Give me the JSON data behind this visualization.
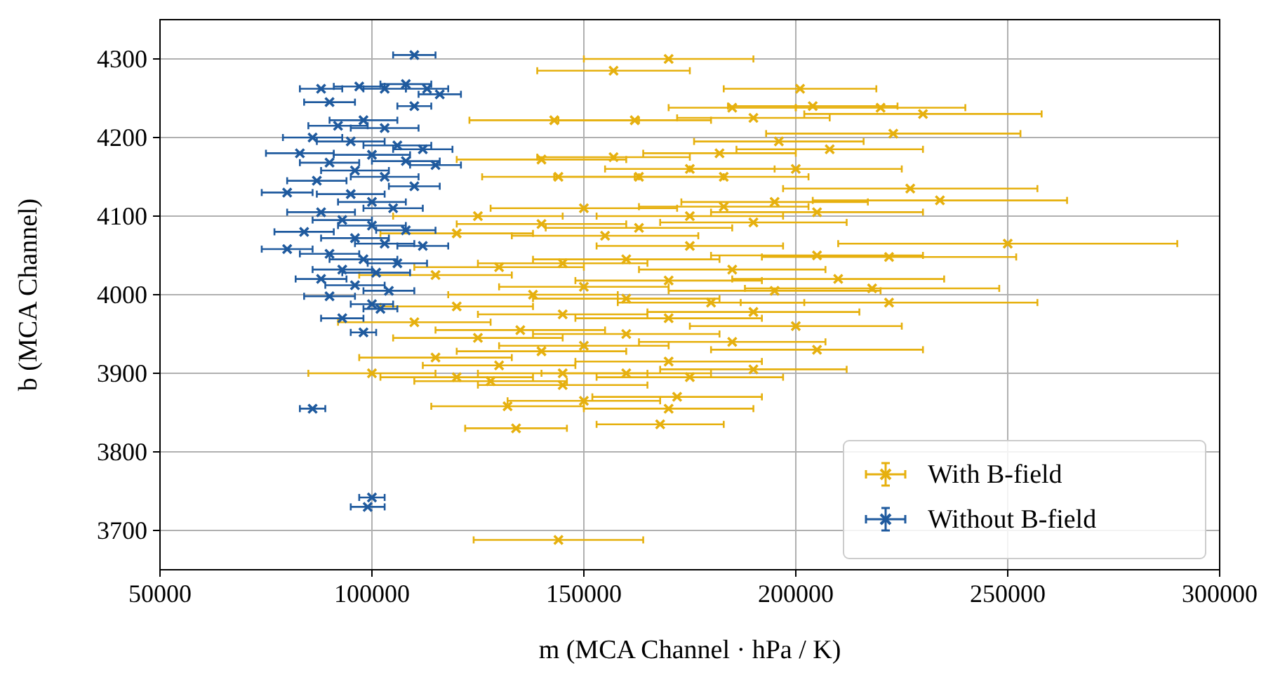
{
  "chart_data": {
    "type": "scatter",
    "xlabel": "m (MCA Channel · hPa / K)",
    "ylabel": "b (MCA Channel)",
    "xlim": [
      50000,
      300000
    ],
    "xticks": [
      50000,
      100000,
      150000,
      200000,
      250000,
      300000
    ],
    "ylim": [
      3650,
      4350
    ],
    "yticks": [
      3700,
      3800,
      3900,
      4000,
      4100,
      4200,
      4300
    ],
    "grid": true,
    "legend": "bottom right",
    "marker": "cross",
    "series": [
      {
        "name": "With B-field",
        "color": "#e6b00e",
        "x": [
          170000,
          157000,
          201000,
          204000,
          220000,
          230000,
          185000,
          190000,
          143000,
          162000,
          223000,
          196000,
          208000,
          182000,
          140000,
          157000,
          175000,
          200000,
          163000,
          144000,
          183000,
          227000,
          234000,
          195000,
          183000,
          150000,
          125000,
          175000,
          205000,
          190000,
          140000,
          163000,
          120000,
          155000,
          250000,
          175000,
          222000,
          205000,
          160000,
          145000,
          130000,
          185000,
          115000,
          210000,
          170000,
          150000,
          218000,
          195000,
          138000,
          160000,
          222000,
          180000,
          120000,
          190000,
          145000,
          170000,
          110000,
          200000,
          135000,
          160000,
          125000,
          185000,
          150000,
          205000,
          140000,
          115000,
          170000,
          130000,
          190000,
          100000,
          145000,
          160000,
          175000,
          120000,
          128000,
          145000,
          172000,
          150000,
          132000,
          170000,
          134000,
          168000,
          144000
        ],
        "values": [
          4300,
          4285,
          4262,
          4240,
          4238,
          4230,
          4238,
          4225,
          4222,
          4222,
          4205,
          4195,
          4185,
          4180,
          4172,
          4175,
          4160,
          4160,
          4150,
          4150,
          4150,
          4135,
          4120,
          4118,
          4112,
          4110,
          4100,
          4100,
          4105,
          4092,
          4090,
          4085,
          4078,
          4075,
          4065,
          4062,
          4048,
          4050,
          4045,
          4040,
          4035,
          4032,
          4025,
          4020,
          4018,
          4010,
          4008,
          4005,
          4000,
          3995,
          3990,
          3990,
          3985,
          3978,
          3975,
          3970,
          3965,
          3960,
          3955,
          3950,
          3945,
          3940,
          3935,
          3930,
          3928,
          3920,
          3915,
          3910,
          3905,
          3900,
          3900,
          3900,
          3895,
          3895,
          3890,
          3885,
          3870,
          3865,
          3858,
          3855,
          3830,
          3835,
          3688
        ],
        "xerrors": [
          20000,
          18000,
          18000,
          20000,
          20000,
          28000,
          15000,
          18000,
          20000,
          18000,
          30000,
          20000,
          22000,
          18000,
          20000,
          18000,
          20000,
          25000,
          20000,
          18000,
          20000,
          30000,
          30000,
          22000,
          20000,
          22000,
          20000,
          22000,
          25000,
          22000,
          20000,
          22000,
          18000,
          22000,
          40000,
          22000,
          30000,
          25000,
          22000,
          20000,
          20000,
          22000,
          18000,
          25000,
          22000,
          20000,
          30000,
          25000,
          20000,
          22000,
          35000,
          22000,
          18000,
          25000,
          20000,
          22000,
          18000,
          25000,
          20000,
          22000,
          20000,
          22000,
          20000,
          25000,
          20000,
          18000,
          22000,
          18000,
          22000,
          15000,
          20000,
          20000,
          22000,
          18000,
          18000,
          20000,
          20000,
          18000,
          18000,
          20000,
          12000,
          15000,
          20000
        ]
      },
      {
        "name": "Without B-field",
        "color": "#1f5a9e",
        "x": [
          110000,
          88000,
          97000,
          103000,
          108000,
          113000,
          116000,
          110000,
          90000,
          98000,
          92000,
          103000,
          86000,
          95000,
          106000,
          112000,
          83000,
          100000,
          108000,
          90000,
          115000,
          96000,
          103000,
          87000,
          110000,
          80000,
          95000,
          100000,
          105000,
          88000,
          93000,
          100000,
          108000,
          84000,
          96000,
          103000,
          112000,
          80000,
          90000,
          98000,
          106000,
          93000,
          101000,
          88000,
          96000,
          104000,
          90000,
          100000,
          102000,
          93000,
          98000,
          86000,
          100000,
          99000
        ],
        "values": [
          4305,
          4262,
          4265,
          4262,
          4268,
          4262,
          4255,
          4240,
          4245,
          4222,
          4215,
          4212,
          4200,
          4195,
          4190,
          4185,
          4180,
          4178,
          4170,
          4168,
          4165,
          4158,
          4150,
          4145,
          4138,
          4130,
          4128,
          4118,
          4110,
          4105,
          4095,
          4088,
          4082,
          4080,
          4072,
          4065,
          4062,
          4058,
          4052,
          4045,
          4040,
          4032,
          4028,
          4020,
          4012,
          4005,
          3998,
          3988,
          3982,
          3970,
          3952,
          3855,
          3742,
          3730
        ],
        "xerrors": [
          5000,
          5000,
          6000,
          5000,
          6000,
          5000,
          5000,
          4000,
          6000,
          8000,
          7000,
          8000,
          7000,
          8000,
          8000,
          7000,
          8000,
          9000,
          8000,
          7000,
          6000,
          8000,
          8000,
          7000,
          6000,
          6000,
          8000,
          8000,
          7000,
          8000,
          7000,
          8000,
          7000,
          7000,
          8000,
          7000,
          6000,
          6000,
          7000,
          8000,
          7000,
          7000,
          8000,
          6000,
          7000,
          6000,
          6000,
          5000,
          4000,
          5000,
          3000,
          3000,
          3000,
          4000
        ]
      }
    ]
  }
}
